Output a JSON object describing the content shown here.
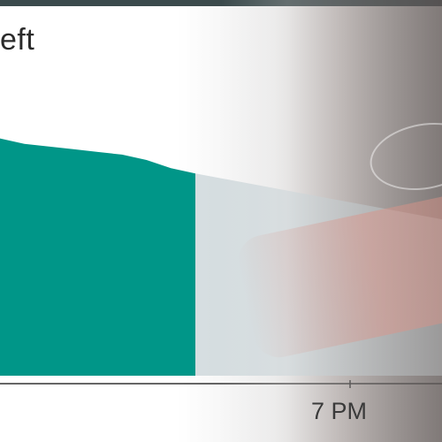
{
  "header": {
    "estimate_text": "eft"
  },
  "chart_data": {
    "type": "area",
    "title": "",
    "xlabel": "",
    "ylabel": "",
    "x_tick_labels": [
      "7 PM"
    ],
    "series": [
      {
        "values": [
          88,
          86,
          85,
          84,
          83,
          82,
          80,
          77,
          75
        ],
        "projected": [
          75,
          58
        ]
      }
    ],
    "ylim": [
      0,
      100
    ],
    "grid": false,
    "colors": {
      "history": "#009688",
      "projection": "#cfd8dc",
      "axis": "#333333"
    }
  }
}
